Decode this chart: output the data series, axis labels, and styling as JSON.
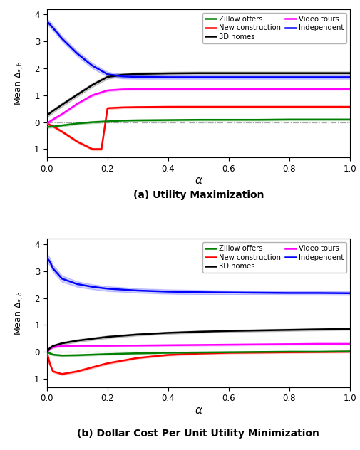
{
  "title_a": "(a) Utility Maximization",
  "title_b": "(b) Dollar Cost Per Unit Utility Minimization",
  "xlabel": "α",
  "ylim": [
    -1.3,
    4.2
  ],
  "xlim": [
    0.0,
    1.0
  ],
  "colors": {
    "zillow": "#008000",
    "new_construction": "#ff0000",
    "3d_homes": "#000000",
    "video_tours": "#ff00ff",
    "independent": "#0000ff"
  },
  "subplot_a": {
    "zillow": {
      "x": [
        0.0,
        0.02,
        0.05,
        0.1,
        0.15,
        0.2,
        0.25,
        0.3,
        0.4,
        0.5,
        0.6,
        0.7,
        0.8,
        0.9,
        1.0
      ],
      "y": [
        -0.18,
        -0.16,
        -0.12,
        -0.05,
        0.0,
        0.03,
        0.06,
        0.07,
        0.08,
        0.09,
        0.09,
        0.09,
        0.1,
        0.1,
        0.1
      ],
      "y_std": [
        0.04,
        0.04,
        0.04,
        0.04,
        0.04,
        0.04,
        0.03,
        0.03,
        0.03,
        0.03,
        0.03,
        0.03,
        0.03,
        0.03,
        0.03
      ]
    },
    "new_construction": {
      "x": [
        0.0,
        0.02,
        0.05,
        0.1,
        0.15,
        0.18,
        0.2,
        0.25,
        0.3,
        0.4,
        0.5,
        0.6,
        0.7,
        0.8,
        0.9,
        1.0
      ],
      "y": [
        -0.05,
        -0.15,
        -0.35,
        -0.72,
        -1.0,
        -1.0,
        0.52,
        0.55,
        0.56,
        0.57,
        0.57,
        0.57,
        0.57,
        0.57,
        0.57,
        0.57
      ],
      "y_std": [
        0.04,
        0.04,
        0.04,
        0.04,
        0.04,
        0.04,
        0.04,
        0.03,
        0.03,
        0.03,
        0.03,
        0.03,
        0.03,
        0.03,
        0.03,
        0.03
      ]
    },
    "3d_homes": {
      "x": [
        0.0,
        0.02,
        0.05,
        0.1,
        0.15,
        0.2,
        0.25,
        0.3,
        0.4,
        0.5,
        0.6,
        0.7,
        0.8,
        0.9,
        1.0
      ],
      "y": [
        0.25,
        0.42,
        0.65,
        1.02,
        1.38,
        1.68,
        1.76,
        1.79,
        1.81,
        1.82,
        1.82,
        1.82,
        1.82,
        1.82,
        1.82
      ],
      "y_std": [
        0.07,
        0.07,
        0.07,
        0.07,
        0.07,
        0.07,
        0.06,
        0.06,
        0.06,
        0.06,
        0.06,
        0.06,
        0.06,
        0.06,
        0.06
      ]
    },
    "video_tours": {
      "x": [
        0.0,
        0.02,
        0.05,
        0.1,
        0.15,
        0.2,
        0.25,
        0.3,
        0.4,
        0.5,
        0.6,
        0.7,
        0.8,
        0.9,
        1.0
      ],
      "y": [
        -0.05,
        0.1,
        0.3,
        0.68,
        1.0,
        1.18,
        1.22,
        1.23,
        1.23,
        1.23,
        1.23,
        1.23,
        1.23,
        1.23,
        1.23
      ],
      "y_std": [
        0.04,
        0.04,
        0.04,
        0.04,
        0.04,
        0.04,
        0.03,
        0.03,
        0.03,
        0.03,
        0.03,
        0.03,
        0.03,
        0.03,
        0.03
      ]
    },
    "independent": {
      "x": [
        0.0,
        0.02,
        0.05,
        0.1,
        0.15,
        0.2,
        0.25,
        0.3,
        0.4,
        0.5,
        0.6,
        0.7,
        0.8,
        0.9,
        1.0
      ],
      "y": [
        3.75,
        3.5,
        3.1,
        2.55,
        2.1,
        1.78,
        1.7,
        1.68,
        1.67,
        1.67,
        1.67,
        1.67,
        1.67,
        1.67,
        1.67
      ],
      "y_std": [
        0.1,
        0.1,
        0.1,
        0.1,
        0.1,
        0.09,
        0.08,
        0.07,
        0.06,
        0.06,
        0.06,
        0.06,
        0.06,
        0.06,
        0.06
      ]
    }
  },
  "subplot_b": {
    "zillow": {
      "x": [
        0.0,
        0.01,
        0.02,
        0.05,
        0.1,
        0.2,
        0.3,
        0.4,
        0.5,
        0.6,
        0.7,
        0.8,
        0.9,
        1.0
      ],
      "y": [
        0.0,
        -0.05,
        -0.1,
        -0.13,
        -0.12,
        -0.08,
        -0.05,
        -0.03,
        -0.02,
        -0.01,
        0.0,
        0.01,
        0.01,
        0.02
      ],
      "y_std": [
        0.03,
        0.03,
        0.03,
        0.03,
        0.03,
        0.03,
        0.03,
        0.02,
        0.02,
        0.02,
        0.02,
        0.02,
        0.02,
        0.02
      ]
    },
    "new_construction": {
      "x": [
        0.0,
        0.01,
        0.02,
        0.05,
        0.1,
        0.2,
        0.3,
        0.4,
        0.5,
        0.6,
        0.7,
        0.8,
        0.9,
        1.0
      ],
      "y": [
        0.0,
        -0.45,
        -0.72,
        -0.82,
        -0.72,
        -0.42,
        -0.22,
        -0.11,
        -0.06,
        -0.03,
        -0.02,
        -0.01,
        0.0,
        0.01
      ],
      "y_std": [
        0.04,
        0.04,
        0.04,
        0.04,
        0.04,
        0.04,
        0.03,
        0.03,
        0.03,
        0.03,
        0.03,
        0.03,
        0.03,
        0.03
      ]
    },
    "3d_homes": {
      "x": [
        0.0,
        0.01,
        0.02,
        0.05,
        0.1,
        0.2,
        0.3,
        0.4,
        0.5,
        0.6,
        0.7,
        0.8,
        0.9,
        1.0
      ],
      "y": [
        0.0,
        0.15,
        0.22,
        0.32,
        0.42,
        0.56,
        0.65,
        0.71,
        0.75,
        0.78,
        0.8,
        0.82,
        0.84,
        0.86
      ],
      "y_std": [
        0.05,
        0.05,
        0.05,
        0.05,
        0.05,
        0.05,
        0.04,
        0.04,
        0.04,
        0.04,
        0.04,
        0.04,
        0.04,
        0.04
      ]
    },
    "video_tours": {
      "x": [
        0.0,
        0.01,
        0.02,
        0.05,
        0.1,
        0.2,
        0.3,
        0.4,
        0.5,
        0.6,
        0.7,
        0.8,
        0.9,
        1.0
      ],
      "y": [
        0.0,
        0.12,
        0.18,
        0.22,
        0.23,
        0.23,
        0.24,
        0.25,
        0.26,
        0.27,
        0.28,
        0.29,
        0.3,
        0.3
      ],
      "y_std": [
        0.03,
        0.03,
        0.03,
        0.03,
        0.03,
        0.03,
        0.03,
        0.03,
        0.03,
        0.03,
        0.03,
        0.03,
        0.03,
        0.03
      ]
    },
    "independent": {
      "x": [
        0.0,
        0.01,
        0.02,
        0.05,
        0.1,
        0.15,
        0.2,
        0.3,
        0.4,
        0.5,
        0.6,
        0.7,
        0.8,
        0.9,
        1.0
      ],
      "y": [
        3.5,
        3.35,
        3.1,
        2.72,
        2.52,
        2.42,
        2.35,
        2.28,
        2.24,
        2.22,
        2.21,
        2.2,
        2.19,
        2.19,
        2.18
      ],
      "y_std": [
        0.15,
        0.14,
        0.13,
        0.12,
        0.1,
        0.09,
        0.09,
        0.08,
        0.08,
        0.08,
        0.07,
        0.07,
        0.07,
        0.07,
        0.07
      ]
    }
  }
}
